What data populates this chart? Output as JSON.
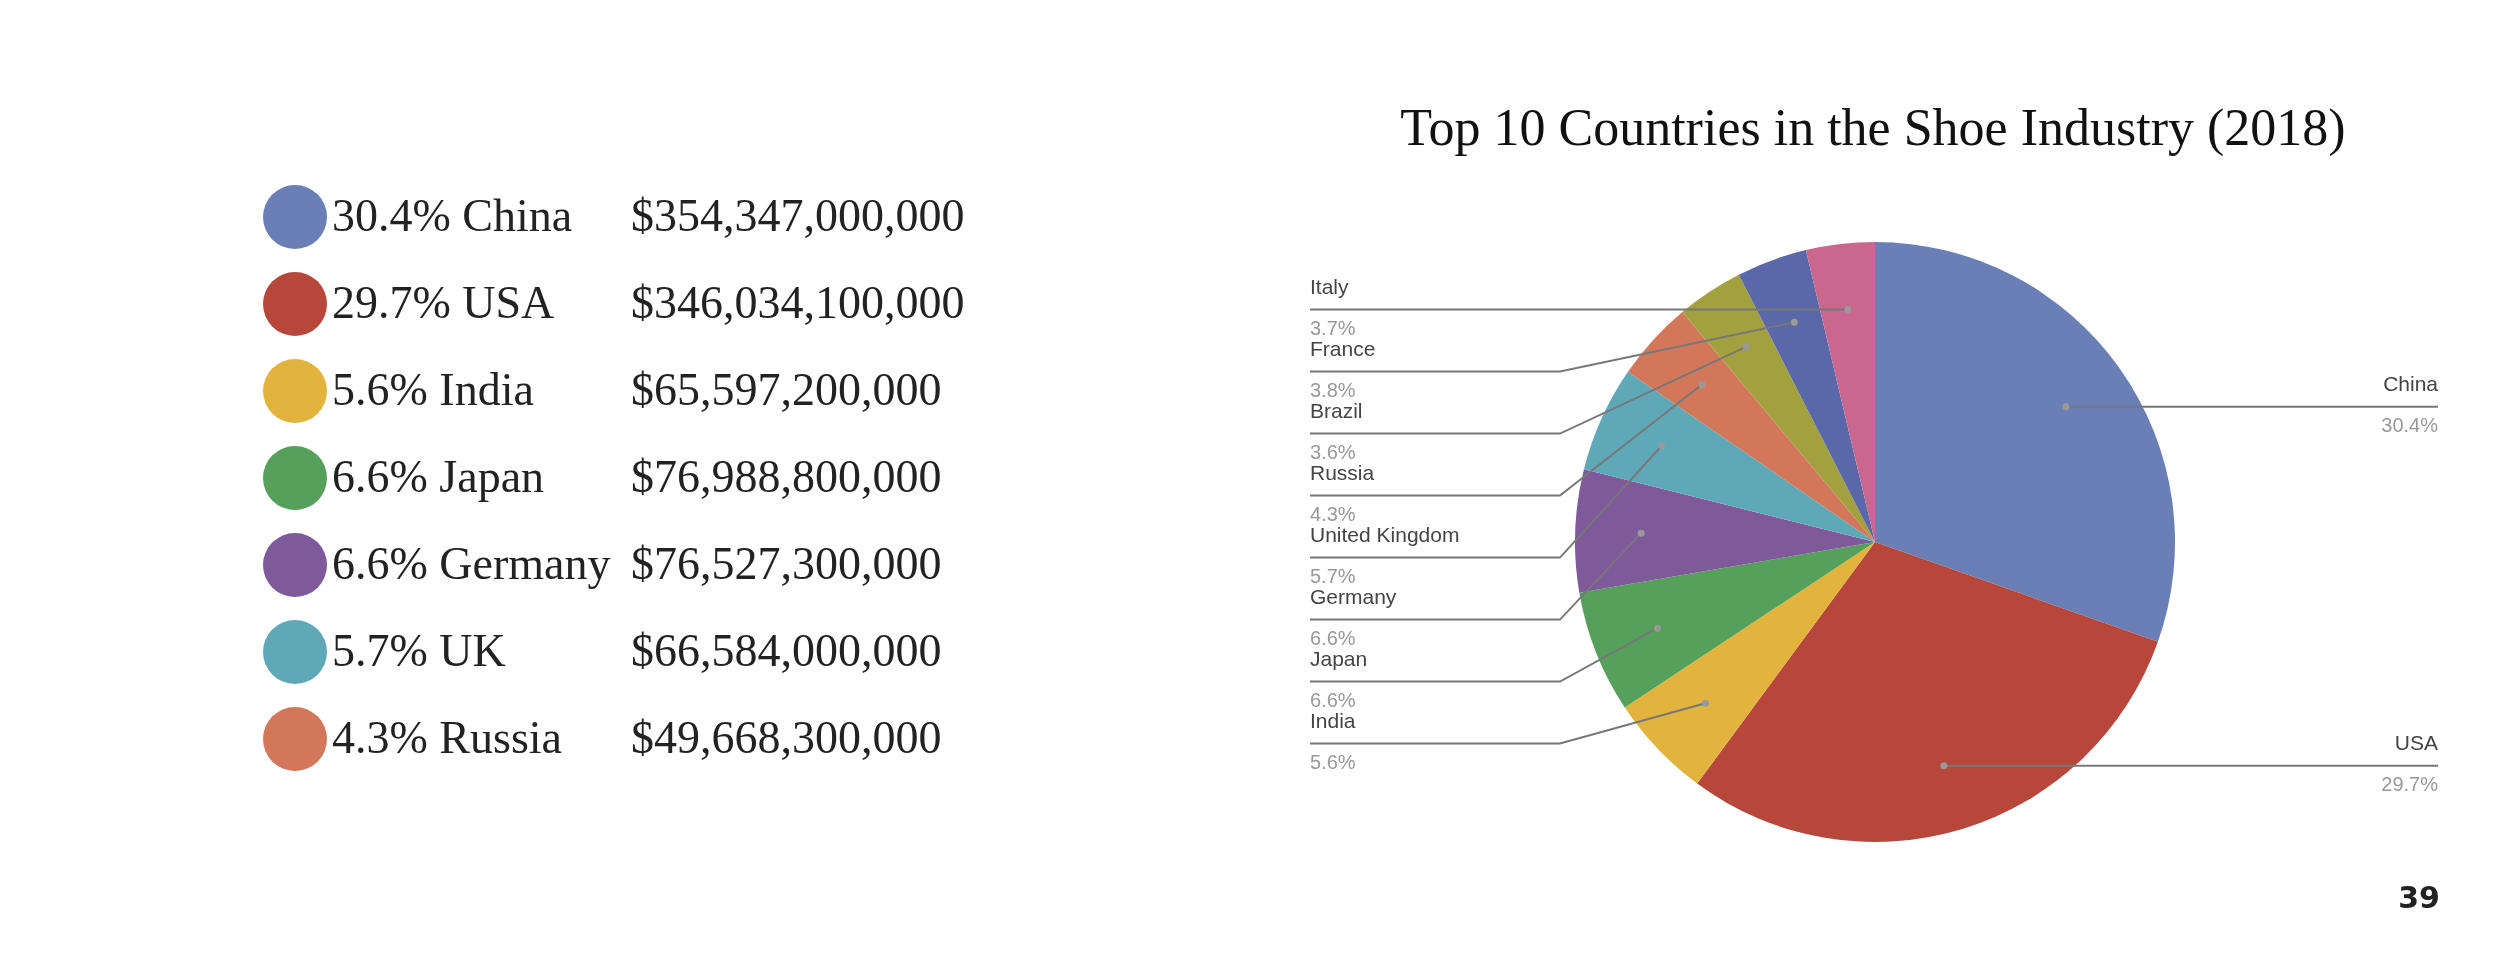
{
  "chart_data": [
    {
      "type": "other",
      "annotations": [
        "30.4% China",
        "$354,347,000,000",
        "29.7% USA",
        "$346,034,100,000",
        "5.6% India",
        "$65,597,200,000",
        "6.6% Japan",
        "$76,988,800,000",
        "6.6% Germany",
        "$76,527,300,000",
        "5.7% UK",
        "$66,584,000,000",
        "4.3% Russia",
        "$49,668,300,000"
      ]
    },
    {
      "type": "pie",
      "title": "Top 10 Countries in the Shoe Industry (2018)",
      "categories": [
        "China",
        "USA",
        "India",
        "Japan",
        "Germany",
        "United Kingdom",
        "Russia",
        "Brazil",
        "France",
        "Italy"
      ],
      "values": [
        30.4,
        29.7,
        5.6,
        6.6,
        6.6,
        5.7,
        4.3,
        3.6,
        3.8,
        3.7
      ],
      "value_labels": [
        "30.4%",
        "29.7%",
        "5.6%",
        "6.6%",
        "6.6%",
        "5.7%",
        "4.3%",
        "3.6%",
        "3.8%",
        "3.7%"
      ],
      "colors": [
        "#6a7fb5",
        "#b8473b",
        "#e3b43d",
        "#55a05a",
        "#7e5a9b",
        "#5fa8b8",
        "#d2775a",
        "#a3a13f",
        "#5a67a8",
        "#c9678e"
      ],
      "annotations": [
        "39"
      ]
    }
  ]
}
